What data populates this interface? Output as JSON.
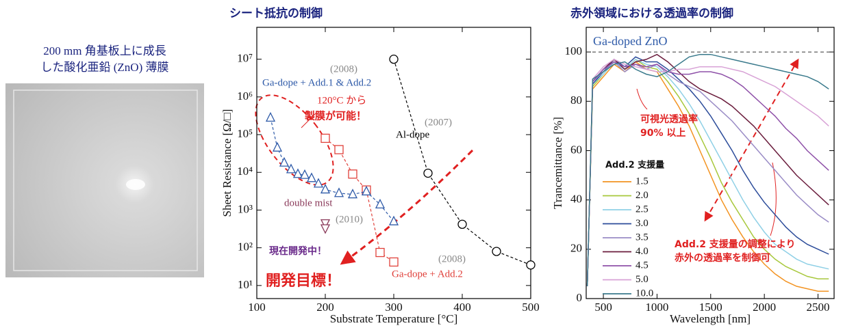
{
  "photo": {
    "caption": [
      "200 mm 角基板上に成長",
      "した酸化亜鉛 (ZnO) 薄膜"
    ]
  },
  "chart_data": [
    {
      "type": "line",
      "title": "シート抵抗の制御",
      "x_label": "Substrate Temperature [°C]",
      "y_label": "Sheet Resistance [Ω/□]",
      "xlim": [
        100,
        500
      ],
      "xticks": [
        100,
        200,
        300,
        400,
        500
      ],
      "ylim": [
        4.5,
        70000000
      ],
      "log_y": true,
      "yticks": [
        {
          "value": 10,
          "label": "10¹"
        },
        {
          "value": 100,
          "label": "10²"
        },
        {
          "value": 1000,
          "label": "10³"
        },
        {
          "value": 10000,
          "label": "10⁴"
        },
        {
          "value": 100000,
          "label": "10⁵"
        },
        {
          "value": 1000000,
          "label": "10⁶"
        },
        {
          "value": 10000000,
          "label": "10⁷"
        }
      ],
      "line_style": "dashed",
      "series": [
        {
          "name": "Al-dope",
          "color": "#000000",
          "marker": "circle",
          "x": [
            300,
            350,
            400,
            450,
            500
          ],
          "values": [
            10000000,
            9500,
            420,
            80,
            35
          ]
        },
        {
          "name": "Ga-dope + Add.2",
          "color": "#e0403a",
          "marker": "square",
          "x": [
            200,
            220,
            240,
            260,
            280,
            300
          ],
          "values": [
            80000,
            40000,
            9000,
            3400,
            75,
            42
          ]
        },
        {
          "name": "Ga-dope + Add.1 & Add.2",
          "color": "#2e5aa8",
          "marker": "triangle",
          "x": [
            120,
            130,
            140,
            150,
            160,
            170,
            180,
            190,
            200,
            220,
            240,
            260,
            280,
            300
          ],
          "values": [
            280000,
            45000,
            18000,
            12000,
            9000,
            8500,
            7000,
            5000,
            3500,
            2800,
            2600,
            3100,
            1400,
            500
          ]
        },
        {
          "name": "double mist",
          "color": "#8a3a5a",
          "marker": "triangle-down",
          "x": [
            200,
            200
          ],
          "values": [
            450,
            330
          ]
        }
      ],
      "annotations": [
        "(2008)",
        "120°C から",
        "製膜が可能！",
        "(2007)",
        "(2010)",
        "現在開発中！",
        "開発目標！",
        "(2008)"
      ]
    },
    {
      "type": "line",
      "title": "赤外領域における透過率の制御",
      "x_label": "Wavelength [nm]",
      "y_label": "Trancemittance [%]",
      "xlim": [
        340,
        2650
      ],
      "xticks": [
        500,
        1000,
        1500,
        2000,
        2500
      ],
      "ylim": [
        0,
        110
      ],
      "yticks": [
        0,
        20,
        40,
        60,
        80,
        100
      ],
      "reference_line": 100,
      "legend_title": "Add.2 支援量",
      "x": [
        350,
        400,
        500,
        600,
        700,
        800,
        900,
        1000,
        1100,
        1200,
        1300,
        1400,
        1500,
        1600,
        1700,
        1800,
        1900,
        2000,
        2100,
        2200,
        2300,
        2400,
        2500,
        2600
      ],
      "series": [
        {
          "name": "1.5",
          "color": "#f39321",
          "values": [
            5,
            85,
            90,
            95,
            92,
            96,
            93,
            92,
            85,
            78,
            70,
            60,
            50,
            40,
            32,
            25,
            19,
            14,
            10,
            7,
            5,
            4,
            3,
            3
          ]
        },
        {
          "name": "2.0",
          "color": "#a8c83c",
          "values": [
            5,
            86,
            91,
            96,
            93,
            97,
            94,
            93,
            88,
            82,
            75,
            66,
            57,
            47,
            39,
            32,
            25,
            20,
            16,
            13,
            11,
            9,
            8,
            8
          ]
        },
        {
          "name": "2.5",
          "color": "#8fd0e6",
          "values": [
            5,
            87,
            91,
            96,
            93,
            97,
            95,
            94,
            90,
            85,
            79,
            72,
            64,
            56,
            48,
            40,
            33,
            27,
            22,
            19,
            16,
            14,
            13,
            12
          ]
        },
        {
          "name": "3.0",
          "color": "#2c4c9a",
          "values": [
            5,
            87,
            92,
            97,
            94,
            98,
            96,
            96,
            93,
            89,
            85,
            80,
            74,
            67,
            60,
            52,
            45,
            39,
            34,
            29,
            25,
            22,
            20,
            18
          ]
        },
        {
          "name": "3.5",
          "color": "#9a8cc6",
          "values": [
            5,
            88,
            92,
            96,
            92,
            95,
            93,
            95,
            91,
            88,
            86,
            84,
            80,
            76,
            72,
            67,
            62,
            57,
            52,
            47,
            42,
            38,
            34,
            31
          ]
        },
        {
          "name": "4.0",
          "color": "#6a1c3c",
          "values": [
            5,
            88,
            93,
            97,
            93,
            96,
            97,
            99,
            96,
            92,
            88,
            85,
            83,
            81,
            78,
            74,
            70,
            65,
            60,
            55,
            50,
            46,
            42,
            38
          ]
        },
        {
          "name": "4.5",
          "color": "#8e50a8",
          "values": [
            5,
            88,
            93,
            96,
            94,
            95,
            94,
            95,
            92,
            91,
            91,
            92,
            92,
            91,
            89,
            86,
            82,
            78,
            74,
            69,
            65,
            60,
            56,
            52
          ]
        },
        {
          "name": "5.0",
          "color": "#d8a2d6",
          "values": [
            5,
            89,
            94,
            97,
            95,
            94,
            93,
            92,
            92,
            93,
            93,
            94,
            94,
            94,
            93,
            92,
            90,
            88,
            86,
            83,
            80,
            77,
            74,
            70
          ]
        },
        {
          "name": "10.0",
          "color": "#3a7a8c",
          "values": [
            5,
            89,
            92,
            95,
            96,
            93,
            91,
            90,
            92,
            95,
            98,
            99,
            99,
            98,
            97,
            96,
            95,
            94,
            93,
            92,
            91,
            90,
            88,
            85
          ]
        }
      ],
      "annotations": [
        "Ga-doped ZnO",
        "可視光透過率",
        "90% 以上",
        "Add.2 支援量の調整により",
        "赤外の透過率を制御可"
      ]
    }
  ]
}
